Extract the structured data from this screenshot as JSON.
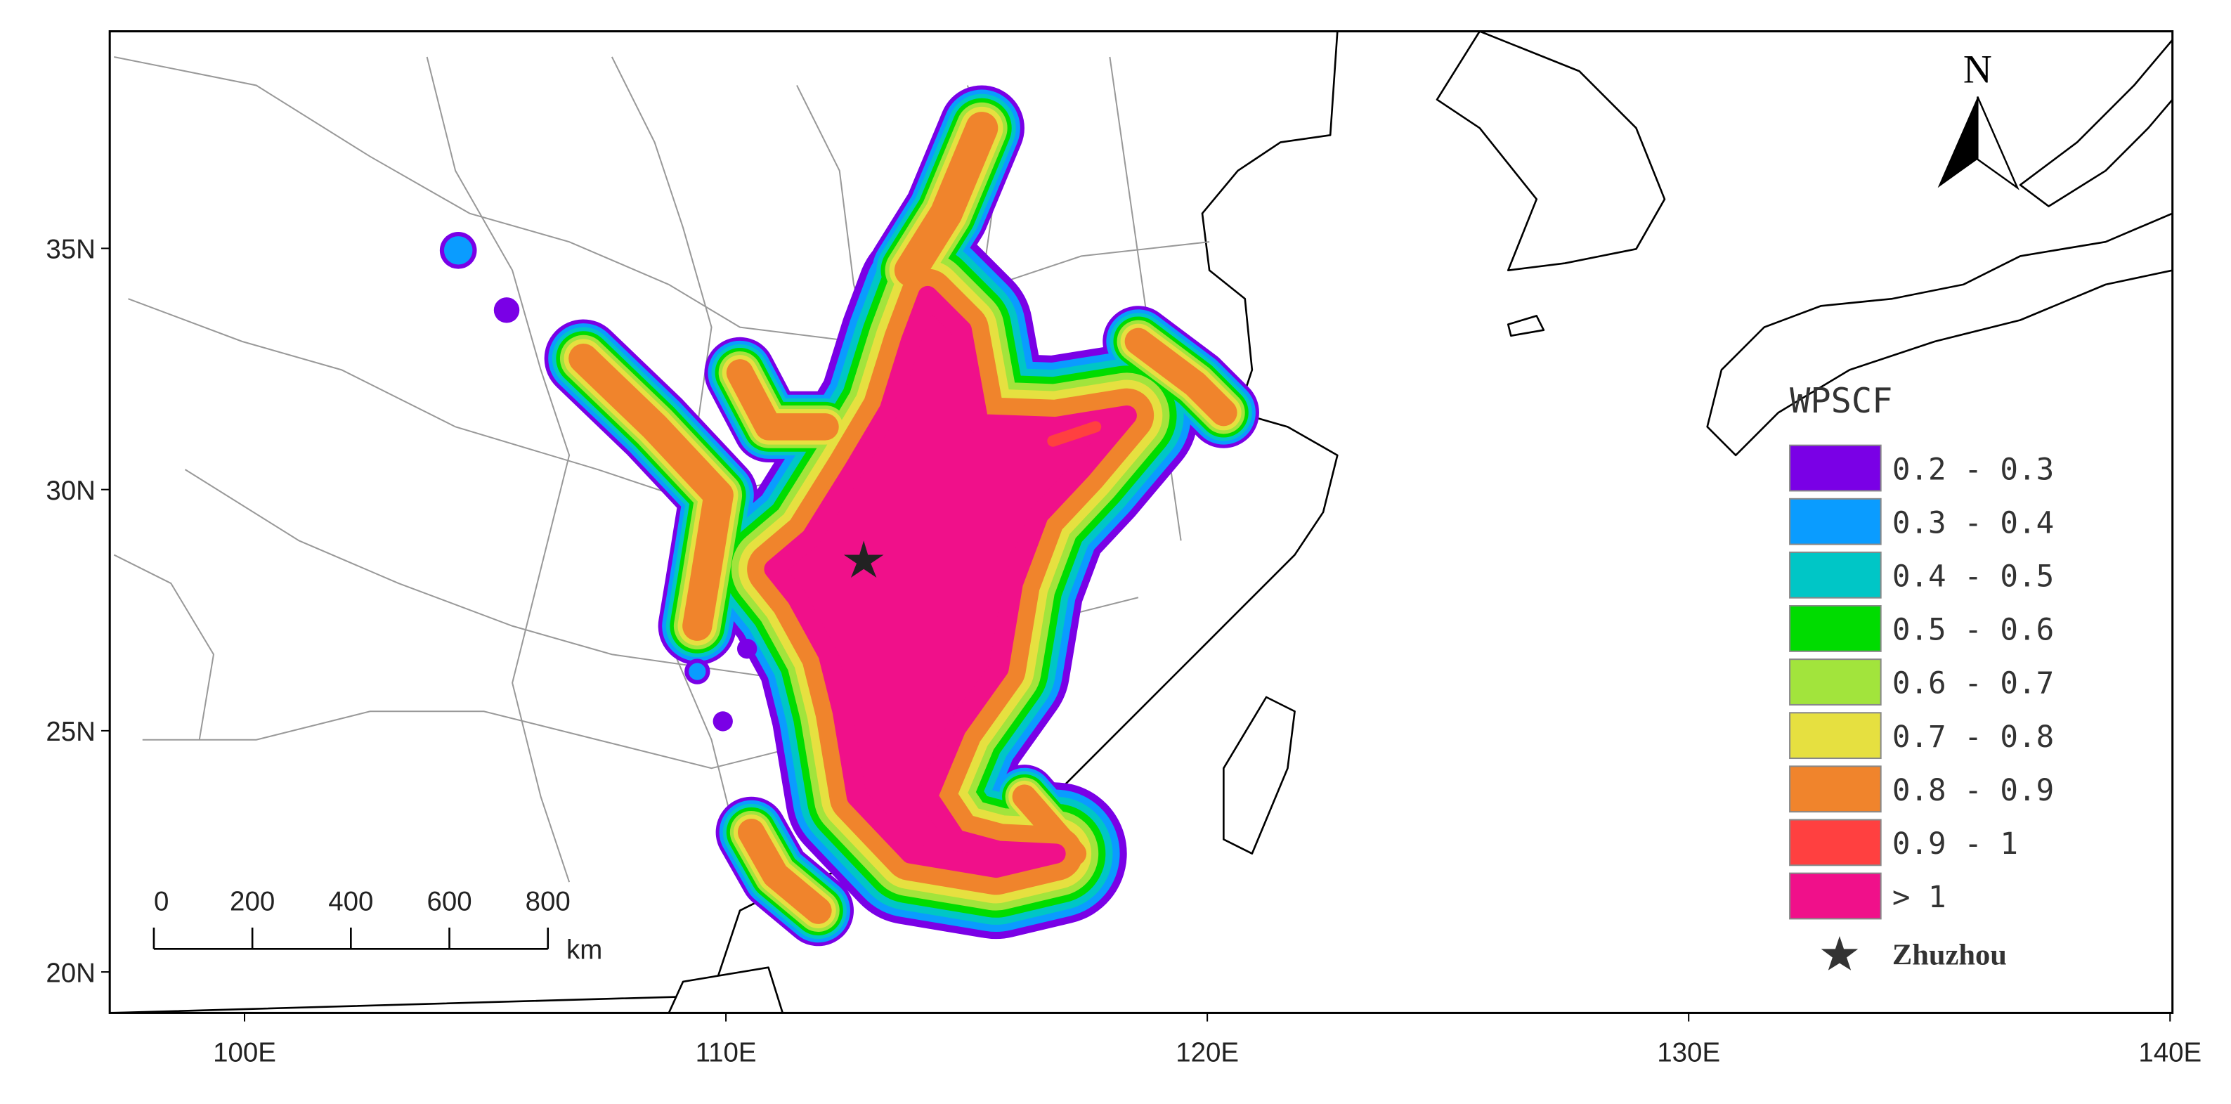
{
  "map": {
    "xlim": [
      97.2,
      140.05
    ],
    "ylim": [
      19.15,
      39.5
    ],
    "xticks": [
      {
        "value": 100,
        "label": "100E"
      },
      {
        "value": 110,
        "label": "110E"
      },
      {
        "value": 120,
        "label": "120E"
      },
      {
        "value": 130,
        "label": "130E"
      },
      {
        "value": 140,
        "label": "140E"
      }
    ],
    "yticks": [
      {
        "value": 20,
        "label": "20N"
      },
      {
        "value": 25,
        "label": "25N"
      },
      {
        "value": 30,
        "label": "30N"
      },
      {
        "value": 35,
        "label": "35N"
      }
    ],
    "north": "N",
    "legend": {
      "title": "WPSCF",
      "items": [
        {
          "label": "0.2 - 0.3",
          "color": "#7a00e6"
        },
        {
          "label": "0.3 - 0.4",
          "color": "#0a9cff"
        },
        {
          "label": "0.4 - 0.5",
          "color": "#00c6c6"
        },
        {
          "label": "0.5 - 0.6",
          "color": "#00dc00"
        },
        {
          "label": "0.6 - 0.7",
          "color": "#a2e43c"
        },
        {
          "label": "0.7 - 0.8",
          "color": "#e6e040"
        },
        {
          "label": "0.8 - 0.9",
          "color": "#f0842c"
        },
        {
          "label": "0.9 - 1",
          "color": "#ff4040"
        },
        {
          "label": "> 1",
          "color": "#f0108a"
        }
      ],
      "marker": "Zhuzhou"
    },
    "scale_bar": {
      "labels": [
        "0",
        "200",
        "400",
        "600",
        "800"
      ],
      "unit": "km"
    }
  }
}
